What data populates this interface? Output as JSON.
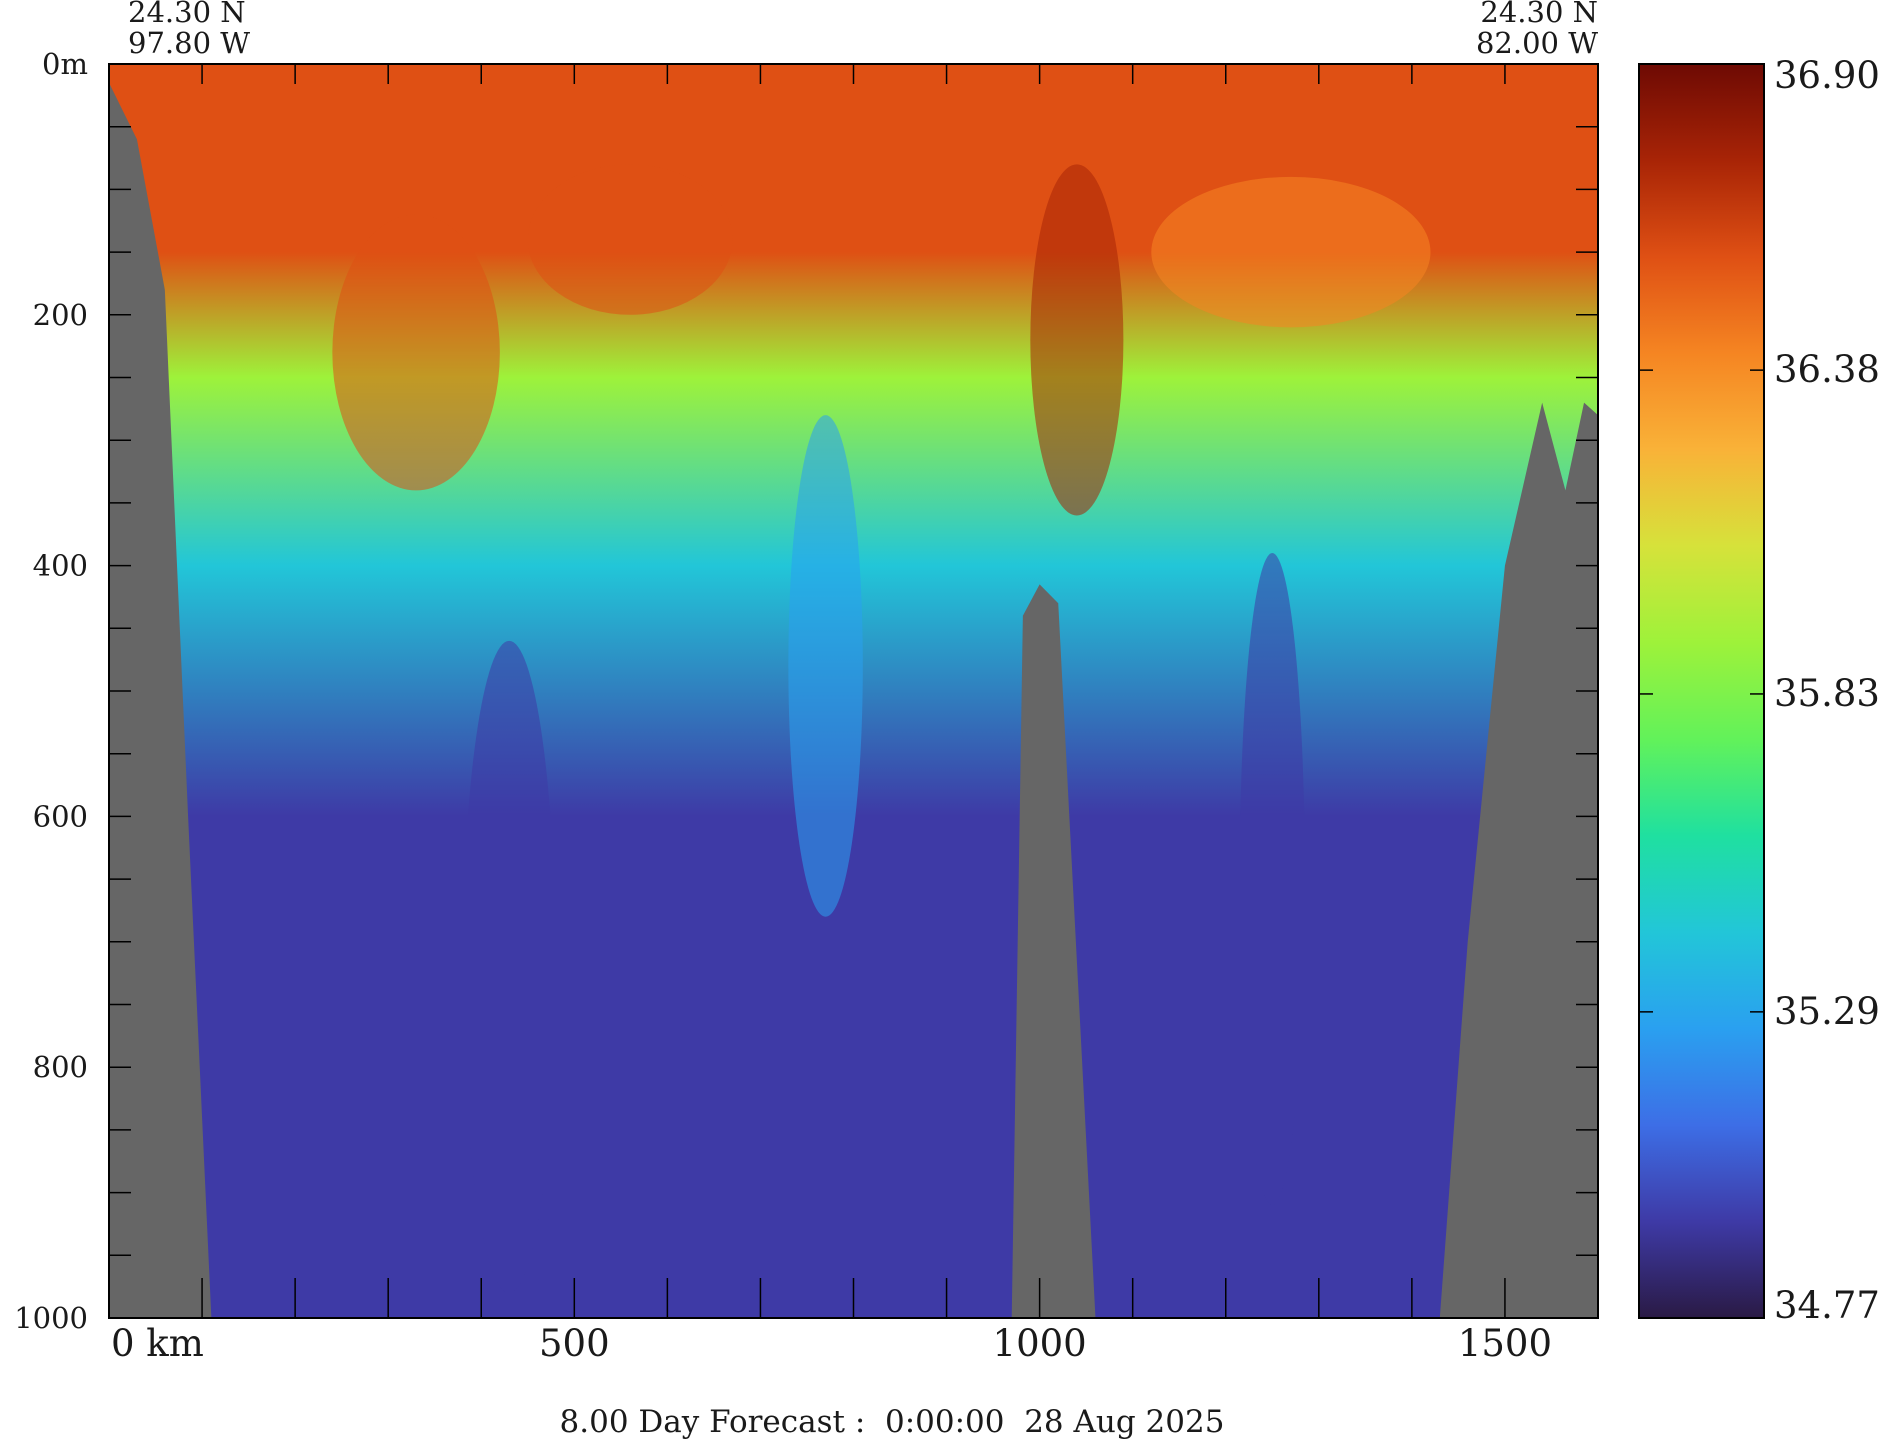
{
  "chart_data": {
    "type": "heatmap",
    "quantity": "salinity",
    "corner_labels": {
      "left_lat": "24.30 N",
      "left_lon": "97.80 W",
      "right_lat": "24.30 N",
      "right_lon": "82.00 W"
    },
    "x_axis": {
      "range": [
        0,
        1600
      ],
      "unit_label": "km",
      "tick_labels": [
        {
          "value": 0,
          "text": "0 km"
        },
        {
          "value": 500,
          "text": "500"
        },
        {
          "value": 1000,
          "text": "1000"
        },
        {
          "value": 1500,
          "text": "1500"
        }
      ],
      "minor_step": 100
    },
    "y_axis": {
      "range": [
        0,
        1000
      ],
      "inverted": true,
      "tick_labels": [
        {
          "value": 0,
          "text": "0m"
        },
        {
          "value": 200,
          "text": "200"
        },
        {
          "value": 400,
          "text": "400"
        },
        {
          "value": 600,
          "text": "600"
        },
        {
          "value": 800,
          "text": "800"
        },
        {
          "value": 1000,
          "text": "1000"
        }
      ],
      "minor_step": 50
    },
    "colorbar": {
      "min": 34.77,
      "max": 36.9,
      "tick_labels": [
        "36.90",
        "36.38",
        "35.83",
        "35.29",
        "34.77"
      ],
      "tick_values": [
        36.9,
        36.38,
        35.83,
        35.29,
        34.77
      ],
      "colormap": [
        "#2a1a45",
        "#3e3aa6",
        "#3d6ee6",
        "#2aa0f0",
        "#22c6d8",
        "#1fe0a0",
        "#62f25a",
        "#9ef23a",
        "#d6e23a",
        "#f9b238",
        "#f58522",
        "#df5014",
        "#a82406",
        "#6e0a04"
      ]
    },
    "bathymetry": {
      "color": "#666666",
      "left_shelf": [
        [
          0,
          15
        ],
        [
          30,
          60
        ],
        [
          60,
          180
        ],
        [
          85,
          600
        ],
        [
          110,
          1000
        ]
      ],
      "ridge": [
        [
          970,
          1000
        ],
        [
          982,
          440
        ],
        [
          1000,
          415
        ],
        [
          1020,
          430
        ],
        [
          1060,
          1000
        ]
      ],
      "right_slope": [
        [
          1430,
          1000
        ],
        [
          1460,
          700
        ],
        [
          1500,
          400
        ],
        [
          1540,
          270
        ],
        [
          1565,
          340
        ],
        [
          1585,
          270
        ],
        [
          1600,
          280
        ]
      ]
    },
    "salinity_profile": [
      {
        "depth": 0,
        "value": 36.6
      },
      {
        "depth": 150,
        "value": 36.5
      },
      {
        "depth": 250,
        "value": 35.9
      },
      {
        "depth": 400,
        "value": 35.4
      },
      {
        "depth": 600,
        "value": 35.0
      },
      {
        "depth": 1000,
        "value": 34.95
      }
    ]
  },
  "footer": {
    "caption": "8.00 Day Forecast :  0:00:00  28 Aug 2025"
  }
}
